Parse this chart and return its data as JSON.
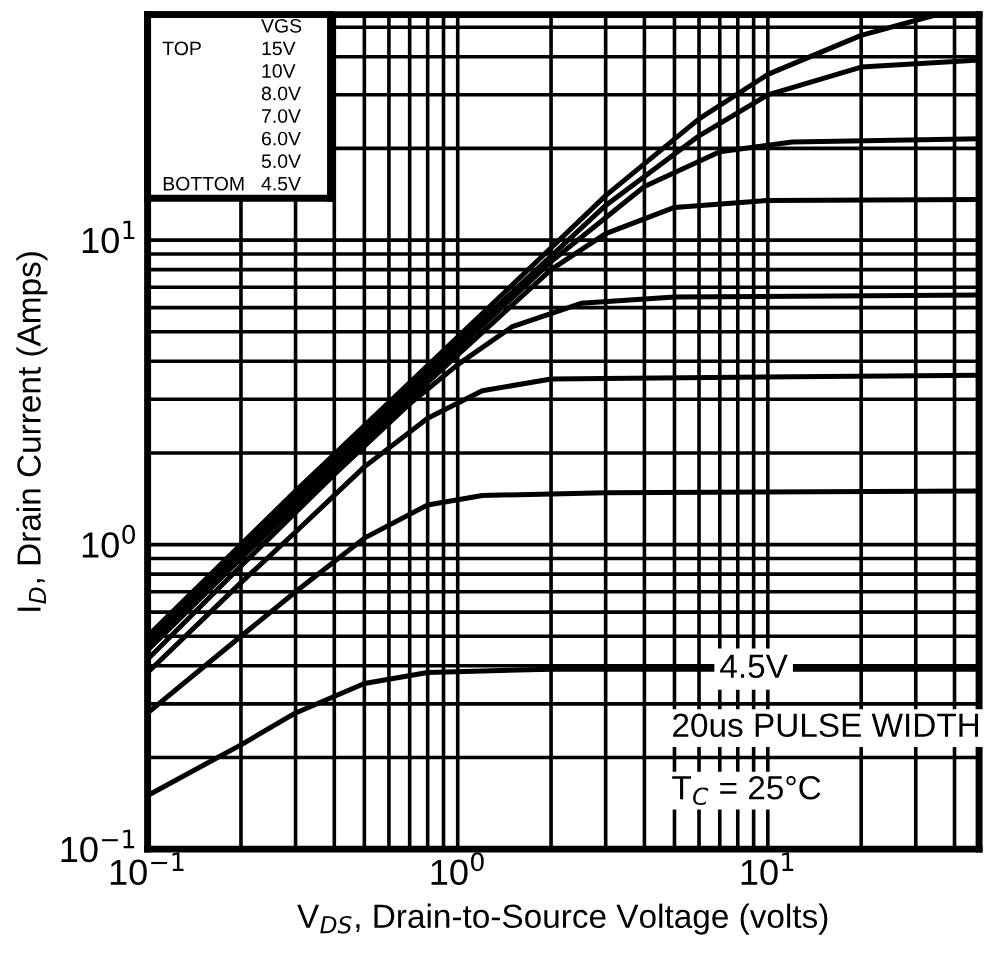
{
  "chart_data": {
    "type": "line",
    "xlabel": "V$_{DS}$, Drain-to-Source Voltage (volts)",
    "ylabel": "I$_{D}$, Drain Current (Amps)",
    "log": "xy",
    "grid": true,
    "marker": "none",
    "line_style": "solid",
    "xlim": [
      0.1,
      48
    ],
    "ylim": [
      0.1,
      55
    ],
    "xticks": [
      {
        "value": 0.1,
        "label": "10$^{−1}$"
      },
      {
        "value": 1,
        "label": "10$^{0}$"
      },
      {
        "value": 10,
        "label": "10$^{1}$"
      }
    ],
    "yticks": [
      {
        "value": 0.1,
        "label": "10$^{−1}$"
      },
      {
        "value": 1,
        "label": "10$^{0}$"
      },
      {
        "value": 10,
        "label": "10$^{1}$"
      }
    ],
    "series": [
      {
        "color": "#000000",
        "x": [
          0.1,
          0.3,
          1,
          3,
          6,
          10,
          20,
          35
        ],
        "values": [
          0.5,
          1.5,
          4.8,
          14,
          25,
          35,
          47,
          55
        ]
      },
      {
        "color": "#000000",
        "x": [
          0.1,
          0.3,
          1,
          3,
          6,
          10,
          20,
          48
        ],
        "values": [
          0.48,
          1.45,
          4.6,
          13,
          22,
          30,
          37,
          39
        ]
      },
      {
        "color": "#000000",
        "x": [
          0.1,
          0.3,
          1,
          2,
          4,
          7,
          12,
          48
        ],
        "values": [
          0.47,
          1.4,
          4.4,
          8.5,
          15,
          19.5,
          21,
          21.5
        ]
      },
      {
        "color": "#000000",
        "x": [
          0.1,
          0.2,
          0.5,
          1,
          2,
          3,
          5,
          10,
          48
        ],
        "values": [
          0.45,
          0.9,
          2.2,
          4.2,
          8,
          10.5,
          12.8,
          13.5,
          13.6
        ]
      },
      {
        "color": "#000000",
        "x": [
          0.1,
          0.2,
          0.4,
          0.7,
          1,
          1.5,
          2.5,
          5,
          48
        ],
        "values": [
          0.42,
          0.85,
          1.7,
          2.9,
          3.9,
          5.2,
          6.2,
          6.5,
          6.6
        ]
      },
      {
        "color": "#000000",
        "x": [
          0.1,
          0.2,
          0.3,
          0.5,
          0.8,
          1.2,
          2,
          48
        ],
        "values": [
          0.38,
          0.75,
          1.1,
          1.8,
          2.6,
          3.2,
          3.5,
          3.6
        ]
      },
      {
        "color": "#000000",
        "x": [
          0.1,
          0.2,
          0.3,
          0.5,
          0.8,
          1.2,
          3,
          48
        ],
        "values": [
          0.28,
          0.5,
          0.7,
          1.05,
          1.35,
          1.45,
          1.48,
          1.5
        ]
      },
      {
        "color": "#000000",
        "x": [
          0.1,
          0.2,
          0.3,
          0.5,
          0.8,
          2,
          48
        ],
        "values": [
          0.15,
          0.22,
          0.28,
          0.35,
          0.38,
          0.39,
          0.39
        ]
      }
    ],
    "annotations": [
      "VGS",
      "15V",
      "10V",
      "8.0V",
      "7.0V",
      "6.0V",
      "5.0V",
      "4.5V",
      "TOP",
      "BOTTOM",
      {
        "text": "4.5V",
        "x": 9,
        "y": 0.39
      },
      "20us PULSE WIDTH",
      "T$_{C}$ = 25°C"
    ]
  }
}
